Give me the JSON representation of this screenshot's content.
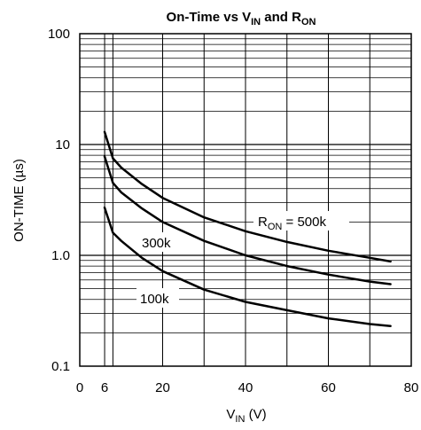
{
  "chart_data": {
    "type": "line",
    "title": {
      "text": "On-Time vs V",
      "sub1": "IN",
      "mid": " and R",
      "sub2": "ON"
    },
    "xlabel": {
      "main": "V",
      "sub": "IN",
      "unit": " (V)"
    },
    "ylabel": "ON-TIME (µs)",
    "xlim": [
      0,
      80
    ],
    "ylim": [
      0.1,
      100
    ],
    "y_scale": "log",
    "grid": true,
    "x_ticks": [
      {
        "value": 0,
        "label": "0"
      },
      {
        "value": 6,
        "label": "6"
      },
      {
        "value": 20,
        "label": "20"
      },
      {
        "value": 40,
        "label": "40"
      },
      {
        "value": 60,
        "label": "60"
      },
      {
        "value": 80,
        "label": "80"
      }
    ],
    "x_gridlines": [
      0,
      6,
      8,
      20,
      30,
      40,
      50,
      60,
      70,
      80
    ],
    "y_ticks": [
      {
        "value": 0.1,
        "label": "0.1"
      },
      {
        "value": 1,
        "label": "1.0"
      },
      {
        "value": 10,
        "label": "10"
      },
      {
        "value": 100,
        "label": "100"
      }
    ],
    "series": [
      {
        "name": "R_ON = 500k",
        "label": {
          "main": "R",
          "sub": "ON",
          "rest": " = 500k"
        },
        "x": [
          6,
          8,
          10,
          15,
          20,
          30,
          40,
          50,
          60,
          70,
          75
        ],
        "values": [
          13.0,
          7.5,
          6.2,
          4.4,
          3.3,
          2.2,
          1.65,
          1.32,
          1.1,
          0.95,
          0.88
        ]
      },
      {
        "name": "300k",
        "label": {
          "main": "300k",
          "sub": "",
          "rest": ""
        },
        "x": [
          6,
          8,
          10,
          15,
          20,
          30,
          40,
          50,
          60,
          70,
          75
        ],
        "values": [
          7.8,
          4.5,
          3.7,
          2.65,
          2.0,
          1.35,
          1.0,
          0.8,
          0.67,
          0.58,
          0.55
        ]
      },
      {
        "name": "100k",
        "label": {
          "main": "100k",
          "sub": "",
          "rest": ""
        },
        "x": [
          6,
          8,
          10,
          15,
          20,
          30,
          40,
          50,
          60,
          70,
          75
        ],
        "values": [
          2.7,
          1.6,
          1.35,
          0.95,
          0.72,
          0.49,
          0.38,
          0.32,
          0.27,
          0.24,
          0.23
        ]
      }
    ]
  }
}
